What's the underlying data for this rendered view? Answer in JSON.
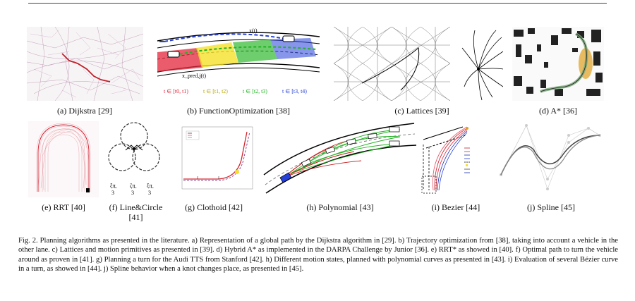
{
  "panels": [
    {
      "caption": "(a) Dijkstra [29]"
    },
    {
      "caption": "(b) FunctionOptimization [38]",
      "labels": [
        "x(t)",
        "x_pred,j(t)"
      ],
      "time_intervals": [
        "t ∈ [t0, t1)",
        "t ∈ [t1, t2)",
        "t ∈ [t2, t3)",
        "t ∈ [t3, t4)"
      ]
    },
    {
      "caption": "(c) Lattices [39]"
    },
    {
      "caption": "(d) A* [36]"
    },
    {
      "caption": "(e) RRT [40]"
    },
    {
      "caption_line1": "(f) Line&Circle",
      "caption_line2": "[41]"
    },
    {
      "caption": "(g) Clothoid [42]"
    },
    {
      "caption": "(h) Polynomial [43]"
    },
    {
      "caption": "(i) Bezier [44]"
    },
    {
      "caption": "(j) Spline [45]"
    }
  ],
  "colors": {
    "red": "#e3263a",
    "green": "#21b321",
    "blue": "#2540d8",
    "yellow": "#f5e12a",
    "purple": "#8b4f9c"
  },
  "figure_caption": "Fig. 2.  Planning algorithms as presented in the literature. a) Representation of a global path by the Dijkstra algorithm in [29]. b) Trajectory optimization from [38], taking into account a vehicle in the other lane. c) Lattices and motion primitives as presented in [39]. d) Hybrid A* as implemented in the DARPA Challenge by Junior [36]. e) RRT* as showed in [40]. f) Optimal path to turn the vehicle around as proven in [41]. g) Planning a turn for the Audi TTS from Stanford [42]. h) Different motion states, planned with polynomial curves as presented in [43]. i) Evaluation of several Bézier curve in a turn, as showed in [44]. j) Spline behavior when a knot changes place, as presented in [45]."
}
